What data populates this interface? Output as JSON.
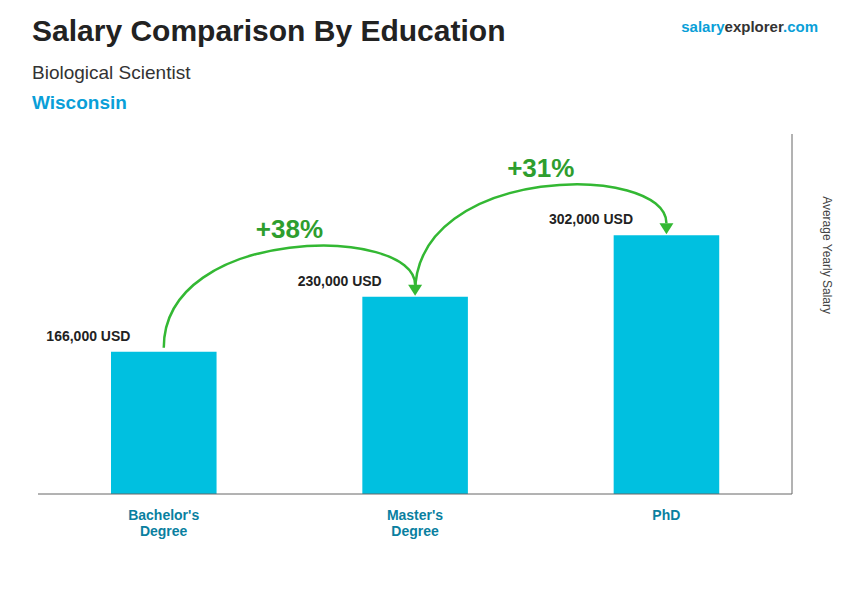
{
  "chart_data": {
    "type": "bar",
    "title": "Salary Comparison By Education",
    "subtitle": "Biological Scientist",
    "location": "Wisconsin",
    "website": [
      "salary",
      "explorer",
      ".com"
    ],
    "ylabel": "Average Yearly Salary",
    "categories": [
      "Bachelor's\nDegree",
      "Master's\nDegree",
      "PhD"
    ],
    "values": [
      166000,
      230000,
      302000
    ],
    "value_labels": [
      "166,000 USD",
      "230,000 USD",
      "302,000 USD"
    ],
    "data_labels": true,
    "annotations": [
      "+38%",
      "+31%"
    ],
    "color": "#00c0e0",
    "ylim": [
      0,
      420000
    ],
    "grid": false,
    "tick_labels": "x"
  }
}
